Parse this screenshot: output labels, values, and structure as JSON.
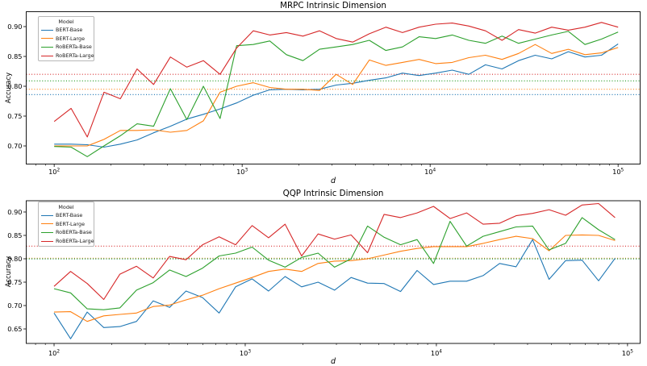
{
  "figure": {
    "background": "#ffffff"
  },
  "chart_data": [
    {
      "type": "line",
      "title": "MRPC Intrinsic Dimension",
      "xlabel": "d",
      "ylabel": "Accuracy",
      "legend_title": "Model",
      "x_scale": "log",
      "grid": false,
      "legend_position": "upper-left",
      "xlim": [
        71,
        131000
      ],
      "ylim": [
        0.6696,
        0.925
      ],
      "xticks": [
        100,
        1000,
        10000,
        100000
      ],
      "yticks": [
        0.7,
        0.75,
        0.8,
        0.85,
        0.9
      ],
      "x": [
        100,
        123,
        150,
        184,
        225,
        276,
        338,
        415,
        508,
        622,
        763,
        934,
        1145,
        1403,
        1719,
        2106,
        2581,
        3162,
        3874,
        4747,
        5817,
        7127,
        8733,
        10700,
        13111,
        16065,
        19684,
        24119,
        29552,
        36210,
        44368,
        54364,
        66612,
        81620,
        100000
      ],
      "series": [
        {
          "name": "BERT-Base",
          "color": "#1f77b4",
          "values": [
            0.703,
            0.703,
            0.702,
            0.698,
            0.703,
            0.71,
            0.722,
            0.733,
            0.745,
            0.753,
            0.762,
            0.772,
            0.785,
            0.794,
            0.795,
            0.794,
            0.795,
            0.802,
            0.805,
            0.81,
            0.814,
            0.822,
            0.818,
            0.822,
            0.827,
            0.82,
            0.836,
            0.829,
            0.843,
            0.852,
            0.846,
            0.858,
            0.849,
            0.852,
            0.871
          ]
        },
        {
          "name": "BERT-Large",
          "color": "#ff7f0e",
          "values": [
            0.7,
            0.7,
            0.7,
            0.711,
            0.726,
            0.726,
            0.727,
            0.723,
            0.726,
            0.742,
            0.79,
            0.8,
            0.806,
            0.798,
            0.795,
            0.795,
            0.793,
            0.82,
            0.803,
            0.844,
            0.835,
            0.84,
            0.845,
            0.838,
            0.84,
            0.848,
            0.852,
            0.845,
            0.855,
            0.87,
            0.855,
            0.862,
            0.853,
            0.856,
            0.865
          ]
        },
        {
          "name": "RoBERTa-Base",
          "color": "#2ca02c",
          "values": [
            0.699,
            0.698,
            0.682,
            0.7,
            0.717,
            0.737,
            0.733,
            0.796,
            0.744,
            0.8,
            0.746,
            0.868,
            0.87,
            0.876,
            0.853,
            0.843,
            0.862,
            0.866,
            0.87,
            0.877,
            0.86,
            0.866,
            0.883,
            0.88,
            0.886,
            0.877,
            0.872,
            0.884,
            0.872,
            0.879,
            0.886,
            0.892,
            0.87,
            0.879,
            0.891
          ]
        },
        {
          "name": "RoBERTa-Large",
          "color": "#d62728",
          "values": [
            0.741,
            0.763,
            0.715,
            0.79,
            0.779,
            0.829,
            0.803,
            0.849,
            0.832,
            0.843,
            0.82,
            0.864,
            0.893,
            0.886,
            0.89,
            0.884,
            0.893,
            0.88,
            0.874,
            0.888,
            0.899,
            0.89,
            0.899,
            0.904,
            0.906,
            0.901,
            0.893,
            0.877,
            0.895,
            0.889,
            0.899,
            0.894,
            0.899,
            0.907,
            0.899
          ]
        }
      ],
      "baselines": [
        {
          "name": "BERT-Base",
          "color": "#1f77b4",
          "value": 0.786
        },
        {
          "name": "BERT-Large",
          "color": "#ff7f0e",
          "value": 0.795
        },
        {
          "name": "RoBERTa-Base",
          "color": "#2ca02c",
          "value": 0.809
        },
        {
          "name": "RoBERTa-Large",
          "color": "#d62728",
          "value": 0.82
        }
      ]
    },
    {
      "type": "line",
      "title": "QQP Intrinsic Dimension",
      "xlabel": "d",
      "ylabel": "Accuracy",
      "legend_title": "Model",
      "x_scale": "log",
      "grid": false,
      "legend_position": "upper-left",
      "xlim": [
        71.5,
        116400
      ],
      "ylim": [
        0.619,
        0.9241
      ],
      "xticks": [
        100,
        1000,
        10000,
        100000
      ],
      "yticks": [
        0.65,
        0.7,
        0.75,
        0.8,
        0.85,
        0.9
      ],
      "x": [
        100,
        122,
        149,
        182,
        221,
        270,
        330,
        402,
        490,
        598,
        730,
        890,
        1086,
        1325,
        1616,
        1972,
        2405,
        2934,
        3579,
        4366,
        5326,
        6497,
        7925,
        9668,
        11794,
        14387,
        17550,
        21409,
        26116,
        31858,
        38862,
        47406,
        57829,
        70543,
        86053
      ],
      "series": [
        {
          "name": "BERT-Base",
          "color": "#1f77b4",
          "values": [
            0.684,
            0.629,
            0.686,
            0.653,
            0.655,
            0.666,
            0.71,
            0.696,
            0.731,
            0.717,
            0.684,
            0.74,
            0.757,
            0.731,
            0.762,
            0.74,
            0.75,
            0.733,
            0.76,
            0.748,
            0.747,
            0.73,
            0.775,
            0.745,
            0.752,
            0.752,
            0.764,
            0.79,
            0.783,
            0.841,
            0.756,
            0.796,
            0.797,
            0.753,
            0.801
          ]
        },
        {
          "name": "BERT-Large",
          "color": "#ff7f0e",
          "values": [
            0.686,
            0.687,
            0.666,
            0.678,
            0.681,
            0.684,
            0.698,
            0.701,
            0.712,
            0.722,
            0.736,
            0.748,
            0.76,
            0.773,
            0.778,
            0.773,
            0.79,
            0.795,
            0.796,
            0.8,
            0.808,
            0.816,
            0.822,
            0.826,
            0.826,
            0.826,
            0.833,
            0.841,
            0.848,
            0.843,
            0.817,
            0.85,
            0.851,
            0.85,
            0.839
          ]
        },
        {
          "name": "RoBERTa-Base",
          "color": "#2ca02c",
          "values": [
            0.736,
            0.727,
            0.693,
            0.691,
            0.695,
            0.733,
            0.749,
            0.776,
            0.762,
            0.78,
            0.806,
            0.812,
            0.825,
            0.797,
            0.782,
            0.803,
            0.812,
            0.782,
            0.8,
            0.87,
            0.846,
            0.83,
            0.841,
            0.79,
            0.88,
            0.827,
            0.848,
            0.858,
            0.868,
            0.87,
            0.819,
            0.833,
            0.888,
            0.862,
            0.841
          ]
        },
        {
          "name": "RoBERTa-Large",
          "color": "#d62728",
          "values": [
            0.741,
            0.773,
            0.747,
            0.713,
            0.767,
            0.784,
            0.759,
            0.805,
            0.798,
            0.83,
            0.847,
            0.83,
            0.871,
            0.845,
            0.874,
            0.806,
            0.853,
            0.842,
            0.851,
            0.813,
            0.895,
            0.888,
            0.898,
            0.912,
            0.886,
            0.898,
            0.874,
            0.876,
            0.892,
            0.897,
            0.905,
            0.893,
            0.915,
            0.918,
            0.888
          ]
        }
      ],
      "baselines": [
        {
          "name": "BERT-Base",
          "color": "#1f77b4",
          "value": 0.7998
        },
        {
          "name": "BERT-Large",
          "color": "#ff7f0e",
          "value": 0.8012
        },
        {
          "name": "RoBERTa-Base",
          "color": "#2ca02c",
          "value": 0.8
        },
        {
          "name": "RoBERTa-Large",
          "color": "#d62728",
          "value": 0.827
        }
      ]
    }
  ]
}
